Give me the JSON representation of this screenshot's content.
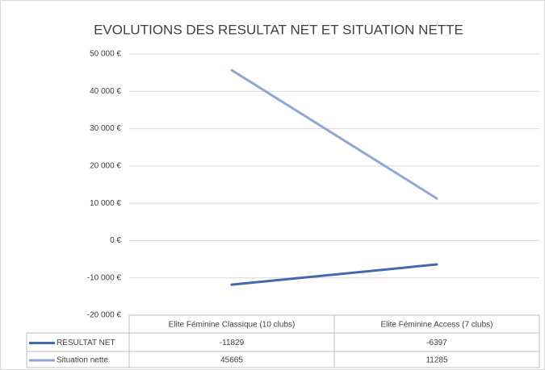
{
  "chart_data": {
    "type": "line",
    "title": "EVOLUTIONS DES RESULTAT NET ET SITUATION NETTE",
    "categories": [
      "Elite Féminine Classique (10 clubs)",
      "Elite Féminine Access (7 clubs)"
    ],
    "series": [
      {
        "name": "RESULTAT NET",
        "color": "#4468b0",
        "values": [
          -11829,
          -6397
        ]
      },
      {
        "name": "Situation nette",
        "color": "#8fa8d8",
        "values": [
          45665,
          11285
        ]
      }
    ],
    "ylim": [
      -20000,
      50000
    ],
    "yticks": [
      {
        "value": -20000,
        "label": "-20 000 €"
      },
      {
        "value": -10000,
        "label": "-10 000 €"
      },
      {
        "value": 0,
        "label": "0 €"
      },
      {
        "value": 10000,
        "label": "10 000 €"
      },
      {
        "value": 20000,
        "label": "20 000 €"
      },
      {
        "value": 30000,
        "label": "30 000 €"
      },
      {
        "value": 40000,
        "label": "40 000 €"
      },
      {
        "value": 50000,
        "label": "50 000 €"
      }
    ],
    "grid": true
  }
}
